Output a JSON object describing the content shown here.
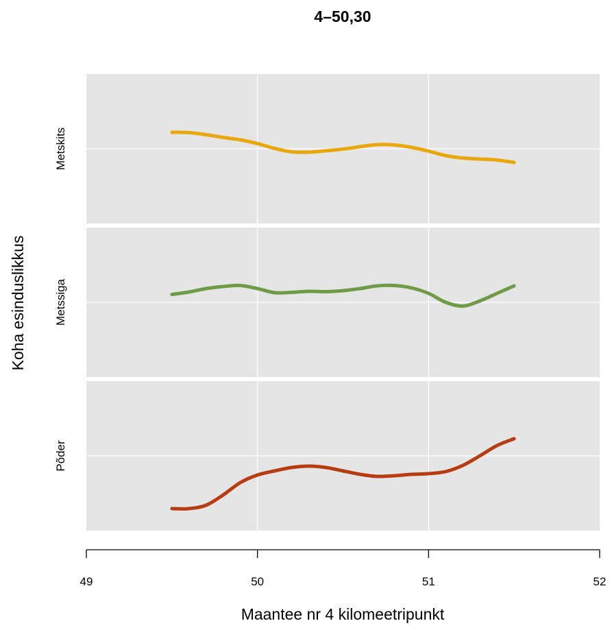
{
  "chart_data": {
    "type": "line",
    "title": "4–50,30",
    "xlabel": "Maantee nr 4 kilomeetripunkt",
    "ylabel": "Koha esinduslikkus",
    "xlim": [
      49,
      52
    ],
    "x_ticks": [
      "49",
      "50",
      "51",
      "52"
    ],
    "grid": true,
    "panel_background": "#e5e5e5",
    "grid_color": "#ffffff",
    "panels": [
      {
        "label": "Metskits",
        "color": "#e8a70c",
        "x": [
          49.5,
          49.6,
          49.7,
          49.8,
          49.9,
          50.0,
          50.1,
          50.2,
          50.3,
          50.4,
          50.5,
          50.6,
          50.7,
          50.8,
          50.9,
          51.0,
          51.1,
          51.2,
          51.3,
          51.4,
          51.5
        ],
        "y": [
          0.24,
          0.235,
          0.205,
          0.165,
          0.13,
          0.075,
          0.005,
          -0.045,
          -0.05,
          -0.03,
          -0.005,
          0.03,
          0.06,
          0.055,
          0.02,
          -0.035,
          -0.1,
          -0.135,
          -0.15,
          -0.165,
          -0.2
        ]
      },
      {
        "label": "Metssiga",
        "color": "#6f9a46",
        "x": [
          49.5,
          49.6,
          49.7,
          49.8,
          49.9,
          50.0,
          50.1,
          50.2,
          50.3,
          50.4,
          50.5,
          50.6,
          50.7,
          50.8,
          50.9,
          51.0,
          51.1,
          51.2,
          51.3,
          51.4,
          51.5
        ],
        "y": [
          0.115,
          0.15,
          0.2,
          0.23,
          0.245,
          0.2,
          0.14,
          0.145,
          0.16,
          0.155,
          0.17,
          0.2,
          0.24,
          0.245,
          0.21,
          0.13,
          0.0,
          -0.055,
          0.02,
          0.13,
          0.24
        ]
      },
      {
        "label": "Põder",
        "color": "#b83c12",
        "x": [
          49.5,
          49.6,
          49.7,
          49.8,
          49.9,
          50.0,
          50.1,
          50.2,
          50.3,
          50.4,
          50.5,
          50.6,
          50.7,
          50.8,
          50.9,
          51.0,
          51.1,
          51.2,
          51.3,
          51.4,
          51.5
        ],
        "y": [
          -0.77,
          -0.77,
          -0.72,
          -0.57,
          -0.39,
          -0.28,
          -0.22,
          -0.17,
          -0.15,
          -0.17,
          -0.22,
          -0.27,
          -0.3,
          -0.29,
          -0.27,
          -0.26,
          -0.23,
          -0.14,
          0.0,
          0.15,
          0.25
        ]
      }
    ]
  }
}
